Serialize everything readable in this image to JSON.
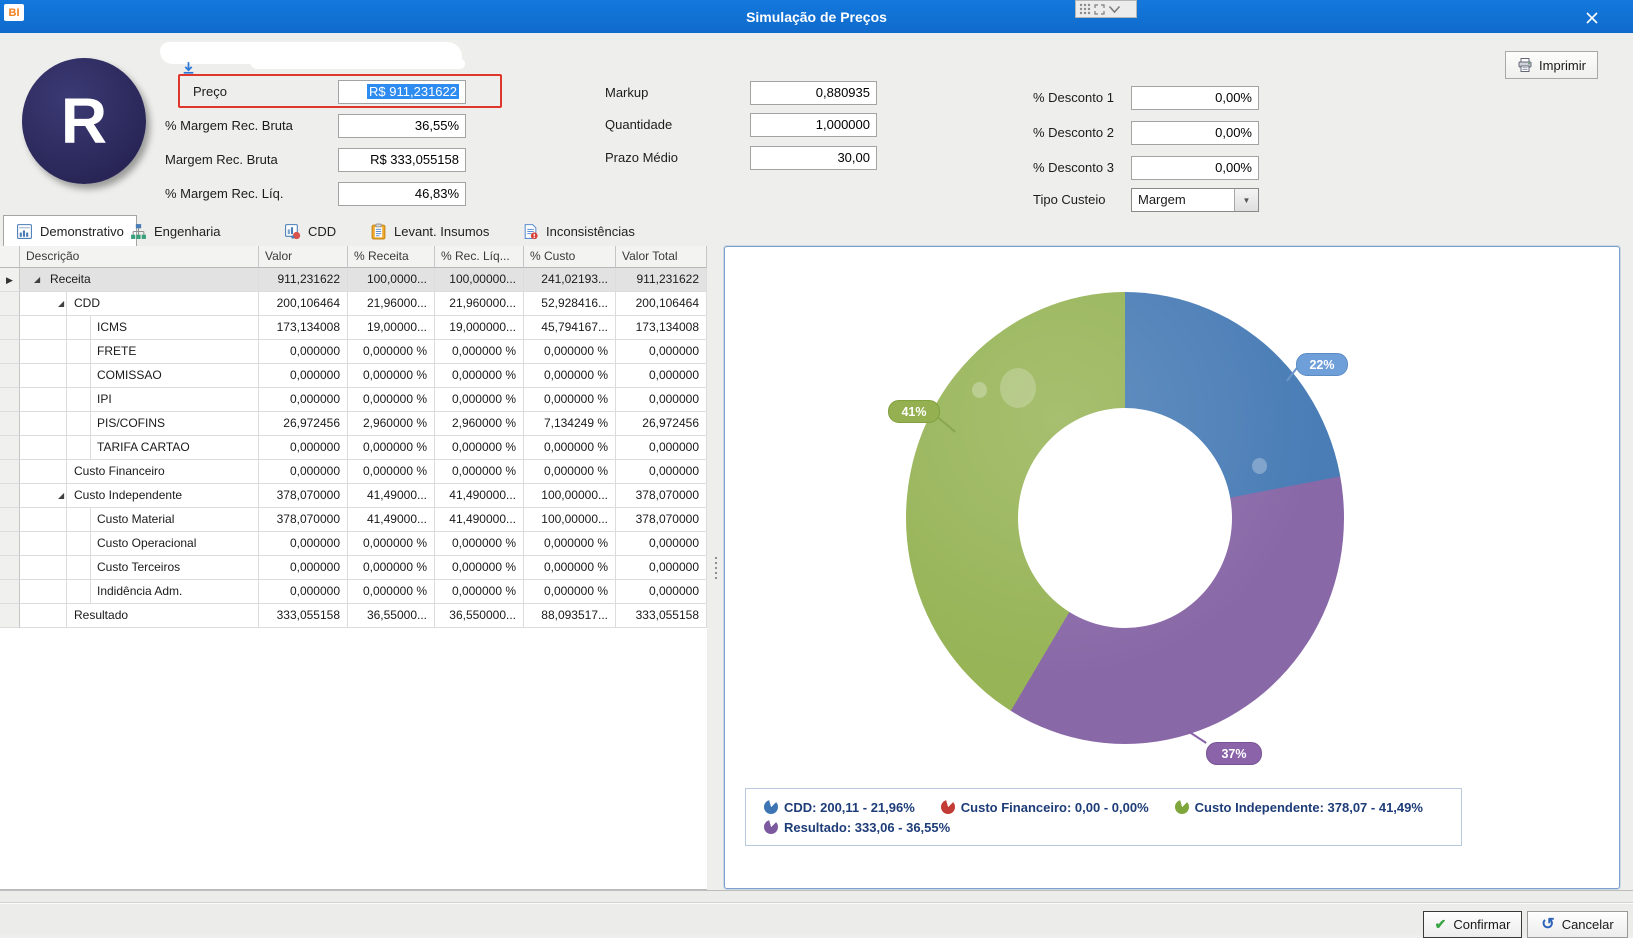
{
  "window": {
    "logo": "BI",
    "title": "Simulação de Preços"
  },
  "toolbar": {
    "print_label": "Imprimir"
  },
  "profile": {
    "avatar_letter": "R"
  },
  "form": {
    "left": [
      {
        "label": "Preço",
        "value": "R$ 911,231622",
        "selected": true
      },
      {
        "label": "% Margem Rec. Bruta",
        "value": "36,55%"
      },
      {
        "label": "Margem Rec. Bruta",
        "value": "R$ 333,055158"
      },
      {
        "label": "% Margem Rec. Líq.",
        "value": "46,83%"
      }
    ],
    "middle": [
      {
        "label": "Markup",
        "value": "0,880935"
      },
      {
        "label": "Quantidade",
        "value": "1,000000"
      },
      {
        "label": "Prazo Médio",
        "value": "30,00"
      }
    ],
    "right": [
      {
        "label": "% Desconto 1",
        "value": "0,00%"
      },
      {
        "label": "% Desconto 2",
        "value": "0,00%"
      },
      {
        "label": "% Desconto 3",
        "value": "0,00%"
      }
    ],
    "tipo_custeio": {
      "label": "Tipo Custeio",
      "value": "Margem"
    }
  },
  "tabs": [
    {
      "label": "Demonstrativo",
      "icon": "grid-report-icon",
      "active": true
    },
    {
      "label": "Engenharia",
      "icon": "org-tree-icon",
      "active": false
    },
    {
      "label": "CDD",
      "icon": "cdd-chart-icon",
      "active": false
    },
    {
      "label": "Levant. Insumos",
      "icon": "clipboard-icon",
      "active": false
    },
    {
      "label": "Inconsistências",
      "icon": "document-alert-icon",
      "active": false
    }
  ],
  "table": {
    "columns": [
      "Descrição",
      "Valor",
      "% Receita",
      "% Rec. Líq...",
      "% Custo",
      "Valor Total"
    ],
    "rows": [
      {
        "label": "Receita",
        "level": 0,
        "expandable": true,
        "selected": true,
        "cells": [
          "911,231622",
          "100,0000...",
          "100,00000...",
          "241,02193...",
          "911,231622"
        ]
      },
      {
        "label": "CDD",
        "level": 1,
        "expandable": true,
        "cells": [
          "200,106464",
          "21,96000...",
          "21,960000...",
          "52,928416...",
          "200,106464"
        ]
      },
      {
        "label": "ICMS",
        "level": 2,
        "cells": [
          "173,134008",
          "19,00000...",
          "19,000000...",
          "45,794167...",
          "173,134008"
        ]
      },
      {
        "label": "FRETE",
        "level": 2,
        "cells": [
          "0,000000",
          "0,000000 %",
          "0,000000 %",
          "0,000000 %",
          "0,000000"
        ]
      },
      {
        "label": "COMISSAO",
        "level": 2,
        "cells": [
          "0,000000",
          "0,000000 %",
          "0,000000 %",
          "0,000000 %",
          "0,000000"
        ]
      },
      {
        "label": "IPI",
        "level": 2,
        "cells": [
          "0,000000",
          "0,000000 %",
          "0,000000 %",
          "0,000000 %",
          "0,000000"
        ]
      },
      {
        "label": "PIS/COFINS",
        "level": 2,
        "cells": [
          "26,972456",
          "2,960000 %",
          "2,960000 %",
          "7,134249 %",
          "26,972456"
        ]
      },
      {
        "label": "TARIFA CARTAO",
        "level": 2,
        "cells": [
          "0,000000",
          "0,000000 %",
          "0,000000 %",
          "0,000000 %",
          "0,000000"
        ]
      },
      {
        "label": "Custo Financeiro",
        "level": 1,
        "cells": [
          "0,000000",
          "0,000000 %",
          "0,000000 %",
          "0,000000 %",
          "0,000000"
        ]
      },
      {
        "label": "Custo Independente",
        "level": 1,
        "expandable": true,
        "cells": [
          "378,070000",
          "41,49000...",
          "41,490000...",
          "100,00000...",
          "378,070000"
        ]
      },
      {
        "label": "Custo Material",
        "level": 2,
        "cells": [
          "378,070000",
          "41,49000...",
          "41,490000...",
          "100,00000...",
          "378,070000"
        ]
      },
      {
        "label": "Custo Operacional",
        "level": 2,
        "cells": [
          "0,000000",
          "0,000000 %",
          "0,000000 %",
          "0,000000 %",
          "0,000000"
        ]
      },
      {
        "label": "Custo Terceiros",
        "level": 2,
        "cells": [
          "0,000000",
          "0,000000 %",
          "0,000000 %",
          "0,000000 %",
          "0,000000"
        ]
      },
      {
        "label": "Indidência Adm.",
        "level": 2,
        "cells": [
          "0,000000",
          "0,000000 %",
          "0,000000 %",
          "0,000000 %",
          "0,000000"
        ]
      },
      {
        "label": "Resultado",
        "level": 1,
        "cells": [
          "333,055158",
          "36,55000...",
          "36,550000...",
          "88,093517...",
          "333,055158"
        ]
      }
    ]
  },
  "chart_data": {
    "type": "pie",
    "style": "donut",
    "series": [
      {
        "name": "CDD",
        "value": 200.11,
        "percent": 21.96,
        "color": "#4a7db6",
        "callout": "22%"
      },
      {
        "name": "Custo Financeiro",
        "value": 0.0,
        "percent": 0.0,
        "color": "#c23b34",
        "callout": null
      },
      {
        "name": "Custo Independente",
        "value": 378.07,
        "percent": 41.49,
        "color": "#97b457",
        "callout": "41%"
      },
      {
        "name": "Resultado",
        "value": 333.06,
        "percent": 36.55,
        "color": "#8968a7",
        "callout": "37%"
      }
    ],
    "draw_order": [
      "CDD",
      "Resultado",
      "Custo Independente"
    ],
    "legend_position": "bottom",
    "title": ""
  },
  "legend": {
    "items": [
      {
        "text": "CDD: 200,11 - 21,96%",
        "color": "#3d74b4"
      },
      {
        "text": "Custo Financeiro: 0,00 - 0,00%",
        "color": "#c23b34"
      },
      {
        "text": "Custo Independente: 378,07 - 41,49%",
        "color": "#7fa63b"
      },
      {
        "text": "Resultado: 333,06 - 36,55%",
        "color": "#7d5aa0"
      }
    ]
  },
  "footer": {
    "confirm_label": "Confirmar",
    "cancel_label": "Cancelar"
  }
}
